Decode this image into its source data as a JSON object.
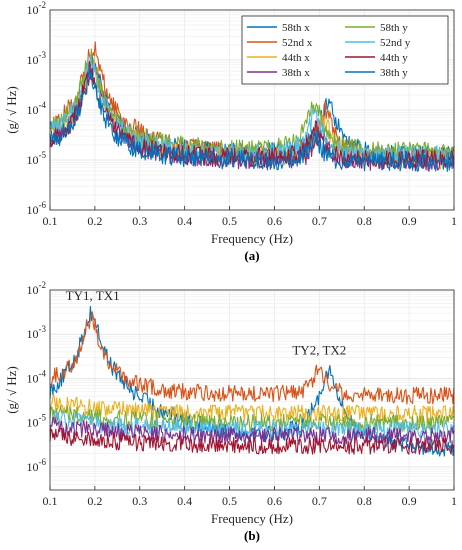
{
  "chart_data": [
    {
      "type": "line",
      "panel": "a",
      "caption": "(a)",
      "xlabel": "Frequency (Hz)",
      "ylabel": "(g/ √ Hz)",
      "xlim": [
        0.1,
        1.0
      ],
      "ylim": [
        1e-06,
        0.01
      ],
      "yscale": "log",
      "grid": true,
      "legend_position": "top-right",
      "x_ticks": [
        "0.1",
        "0.2",
        "0.3",
        "0.4",
        "0.5",
        "0.6",
        "0.7",
        "0.8",
        "0.9",
        "1"
      ],
      "series": [
        {
          "name": "58th x",
          "color": "#0072BD",
          "peak1": [
            0.195,
            0.001
          ],
          "peak2": [
            0.72,
            0.00014
          ],
          "base": 1.2e-05
        },
        {
          "name": "52nd x",
          "color": "#D95319",
          "peak1": [
            0.195,
            0.0018
          ],
          "peak2": [
            0.715,
            9e-05
          ],
          "base": 1.1e-05
        },
        {
          "name": "44th x",
          "color": "#EDB120",
          "peak1": [
            0.195,
            0.0009
          ],
          "peak2": [
            0.71,
            5e-05
          ],
          "base": 1e-05
        },
        {
          "name": "38th x",
          "color": "#7E2F8E",
          "peak1": [
            0.195,
            0.0007
          ],
          "peak2": [
            0.705,
            3e-05
          ],
          "base": 9e-06
        },
        {
          "name": "58th y",
          "color": "#77AC30",
          "peak1": [
            0.19,
            0.0012
          ],
          "peak2": [
            0.69,
            0.00012
          ],
          "base": 1.4e-05
        },
        {
          "name": "52nd y",
          "color": "#4DBEEE",
          "peak1": [
            0.19,
            0.0009
          ],
          "peak2": [
            0.69,
            7e-05
          ],
          "base": 1.2e-05
        },
        {
          "name": "44th y",
          "color": "#A2142F",
          "peak1": [
            0.19,
            0.0006
          ],
          "peak2": [
            0.69,
            3e-05
          ],
          "base": 1e-05
        },
        {
          "name": "38th y",
          "color": "#0072BD",
          "peak1": [
            0.19,
            0.0005
          ],
          "peak2": [
            0.69,
            2e-05
          ],
          "base": 9e-06
        }
      ]
    },
    {
      "type": "line",
      "panel": "b",
      "caption": "(b)",
      "xlabel": "Frequency (Hz)",
      "ylabel": "(g/ √ Hz)",
      "xlim": [
        0.1,
        1.0
      ],
      "ylim": [
        3e-07,
        0.01
      ],
      "yscale": "log",
      "grid": true,
      "x_ticks": [
        "0.1",
        "0.2",
        "0.3",
        "0.4",
        "0.5",
        "0.6",
        "0.7",
        "0.8",
        "0.9",
        "1"
      ],
      "annotations": [
        {
          "text": "TY1, TX1",
          "x": 0.195,
          "y": 0.006
        },
        {
          "text": "TY2, TX2",
          "x": 0.7,
          "y": 0.00035
        }
      ],
      "series": [
        {
          "color": "#0072BD",
          "peak1": [
            0.192,
            0.003
          ],
          "peak2": [
            0.72,
            0.00015
          ],
          "base": 1.6e-06
        },
        {
          "color": "#D95319",
          "peak1": [
            0.192,
            0.0022
          ],
          "peak2": [
            0.7,
            0.00013
          ],
          "base": 4e-05
        },
        {
          "color": "#EDB120",
          "peak1": null,
          "peak2": null,
          "base": 1.6e-05
        },
        {
          "color": "#77AC30",
          "peak1": null,
          "peak2": null,
          "base": 1e-05
        },
        {
          "color": "#4DBEEE",
          "peak1": null,
          "peak2": null,
          "base": 7e-06
        },
        {
          "color": "#7E2F8E",
          "peak1": null,
          "peak2": null,
          "base": 5e-06
        },
        {
          "color": "#A2142F",
          "peak1": null,
          "peak2": null,
          "base": 3e-06
        }
      ]
    }
  ]
}
